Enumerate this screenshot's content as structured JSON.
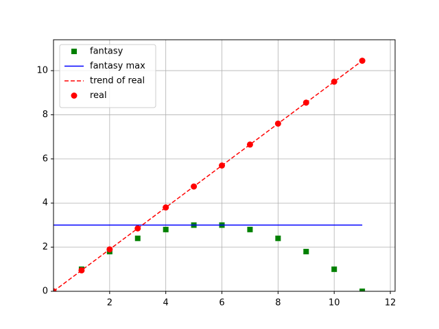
{
  "chart_data": {
    "type": "line",
    "xlim": [
      0,
      12.17
    ],
    "ylim": [
      0,
      11.4
    ],
    "xticks": [
      2,
      4,
      6,
      8,
      10,
      12
    ],
    "yticks": [
      0,
      2,
      4,
      6,
      8,
      10
    ],
    "grid": true,
    "legend": "upper left",
    "series": [
      {
        "name": "fantasy",
        "color": "#008000",
        "marker": "square",
        "linestyle": "none",
        "x": [
          1,
          2,
          3,
          4,
          5,
          6,
          7,
          8,
          9,
          10,
          11
        ],
        "values": [
          1,
          1.8,
          2.4,
          2.8,
          3,
          3,
          2.8,
          2.4,
          1.8,
          1,
          0
        ]
      },
      {
        "name": "fantasy max",
        "color": "#0000ff",
        "marker": "none",
        "linestyle": "solid",
        "x": [
          0,
          11
        ],
        "values": [
          3,
          3
        ]
      },
      {
        "name": "trend of real",
        "color": "#ff0000",
        "marker": "none",
        "linestyle": "dashed",
        "x": [
          0,
          11
        ],
        "values": [
          0,
          10.45
        ]
      },
      {
        "name": "real",
        "color": "#ff0000",
        "marker": "circle",
        "linestyle": "none",
        "x": [
          0,
          1,
          2,
          3,
          4,
          5,
          6,
          7,
          8,
          9,
          10,
          11
        ],
        "values": [
          0,
          0.95,
          1.9,
          2.85,
          3.8,
          4.75,
          5.7,
          6.65,
          7.6,
          8.55,
          9.5,
          10.45
        ]
      }
    ]
  }
}
